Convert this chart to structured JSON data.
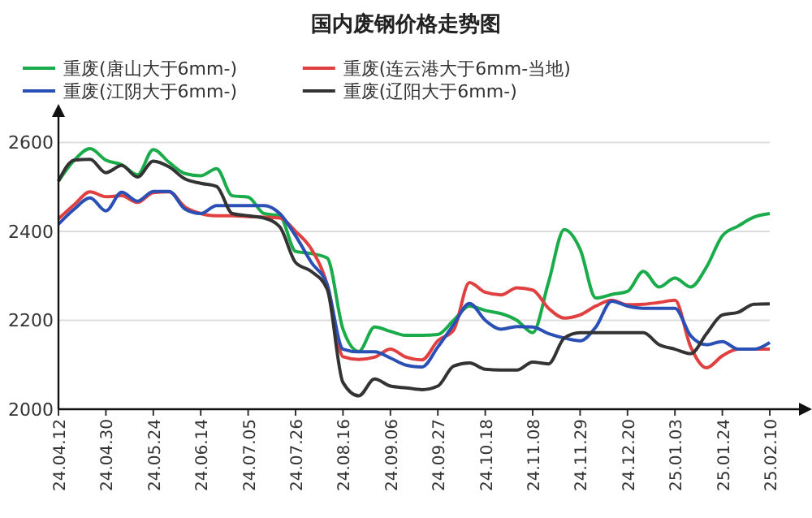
{
  "chart_data": {
    "type": "line",
    "title": "国内废钢价格走势图",
    "categories": [
      "24.04.12",
      null,
      null,
      "24.04.30",
      null,
      null,
      "24.05.24",
      null,
      null,
      "24.06.14",
      null,
      null,
      "24.07.05",
      null,
      null,
      "24.07.26",
      null,
      null,
      "24.08.16",
      null,
      null,
      "24.09.06",
      null,
      null,
      "24.09.27",
      null,
      null,
      "24.10.18",
      null,
      null,
      "24.11.08",
      null,
      null,
      "24.11.29",
      null,
      null,
      "24.12.20",
      null,
      null,
      "25.01.03",
      null,
      null,
      "25.01.24",
      null,
      null,
      "25.02.10"
    ],
    "series": [
      {
        "name": "重废(唐山大于6mm-)",
        "color": "#1aab4a",
        "values": [
          2513,
          2560,
          2586,
          2560,
          2550,
          2527,
          2584,
          2555,
          2530,
          2525,
          2541,
          2480,
          2477,
          2440,
          2435,
          2355,
          2350,
          2340,
          2180,
          2130,
          2185,
          2175,
          2166,
          2166,
          2168,
          2200,
          2232,
          2222,
          2215,
          2200,
          2172,
          2285,
          2404,
          2360,
          2250,
          2258,
          2265,
          2310,
          2275,
          2295,
          2275,
          2320,
          2390,
          2412,
          2432,
          2440
        ]
      },
      {
        "name": "重废(连云港大于6mm-当地)",
        "color": "#e04040",
        "values": [
          2428,
          2460,
          2489,
          2478,
          2480,
          2465,
          2487,
          2489,
          2455,
          2440,
          2435,
          2435,
          2433,
          2432,
          2430,
          2400,
          2360,
          2280,
          2118,
          2112,
          2117,
          2135,
          2117,
          2111,
          2154,
          2178,
          2285,
          2263,
          2257,
          2273,
          2268,
          2227,
          2205,
          2212,
          2232,
          2245,
          2235,
          2236,
          2240,
          2245,
          2140,
          2093,
          2120,
          2135,
          2135,
          2135
        ]
      },
      {
        "name": "重废(江阴大于6mm-)",
        "color": "#2a4fb5",
        "values": [
          2416,
          2450,
          2475,
          2446,
          2488,
          2468,
          2490,
          2490,
          2450,
          2440,
          2458,
          2458,
          2458,
          2458,
          2440,
          2390,
          2330,
          2280,
          2135,
          2129,
          2129,
          2115,
          2099,
          2095,
          2140,
          2190,
          2238,
          2200,
          2180,
          2186,
          2185,
          2170,
          2160,
          2154,
          2185,
          2243,
          2232,
          2227,
          2227,
          2227,
          2165,
          2145,
          2152,
          2135,
          2135,
          2150
        ]
      },
      {
        "name": "重废(辽阳大于6mm-)",
        "color": "#333333",
        "values": [
          2513,
          2560,
          2562,
          2532,
          2548,
          2522,
          2558,
          2545,
          2518,
          2508,
          2501,
          2440,
          2435,
          2430,
          2410,
          2330,
          2310,
          2270,
          2060,
          2030,
          2068,
          2052,
          2048,
          2044,
          2052,
          2097,
          2104,
          2090,
          2088,
          2088,
          2106,
          2102,
          2160,
          2172,
          2172,
          2172,
          2172,
          2172,
          2145,
          2135,
          2125,
          2170,
          2212,
          2218,
          2236,
          2237
        ]
      }
    ],
    "ylim": [
      2000,
      2650
    ],
    "yticks": [
      2000,
      2200,
      2400,
      2600
    ],
    "grid": "y",
    "legend": "top left",
    "line_style": "solid",
    "marker": "none"
  }
}
